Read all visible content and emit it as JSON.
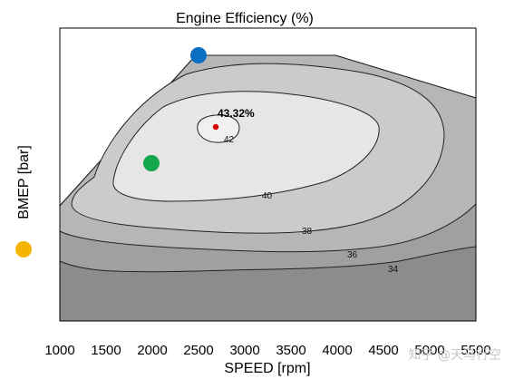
{
  "chart_data": {
    "type": "contour",
    "title": "Engine Efficiency (%)",
    "xlabel": "SPEED [rpm]",
    "ylabel": "BMEP [bar]",
    "xlim": [
      1000,
      5500
    ],
    "x_ticks": [
      "1000",
      "1500",
      "2000",
      "2500",
      "3000",
      "3500",
      "4000",
      "4500",
      "5000",
      "5500"
    ],
    "grid": false,
    "contour_levels": [
      {
        "label": "34",
        "value": 34,
        "color": "#8c8c8c"
      },
      {
        "label": "36",
        "value": 36,
        "color": "#a0a0a0"
      },
      {
        "label": "38",
        "value": 38,
        "color": "#b6b6b6"
      },
      {
        "label": "40",
        "value": 40,
        "color": "#cbcbcb"
      },
      {
        "label": "42",
        "value": 42,
        "color": "#e6e6e6"
      }
    ],
    "peak": {
      "label": "43.32%",
      "value": 43.32,
      "speed": 2700,
      "color": "#e00000"
    },
    "markers": [
      {
        "name": "blue-marker",
        "speed": 2500,
        "color": "#0a6fc2"
      },
      {
        "name": "green-marker",
        "speed": 2000,
        "color": "#14a64a"
      },
      {
        "name": "yellow-marker",
        "color": "#f5b400"
      }
    ],
    "watermark": "知乎 @天马行空"
  }
}
